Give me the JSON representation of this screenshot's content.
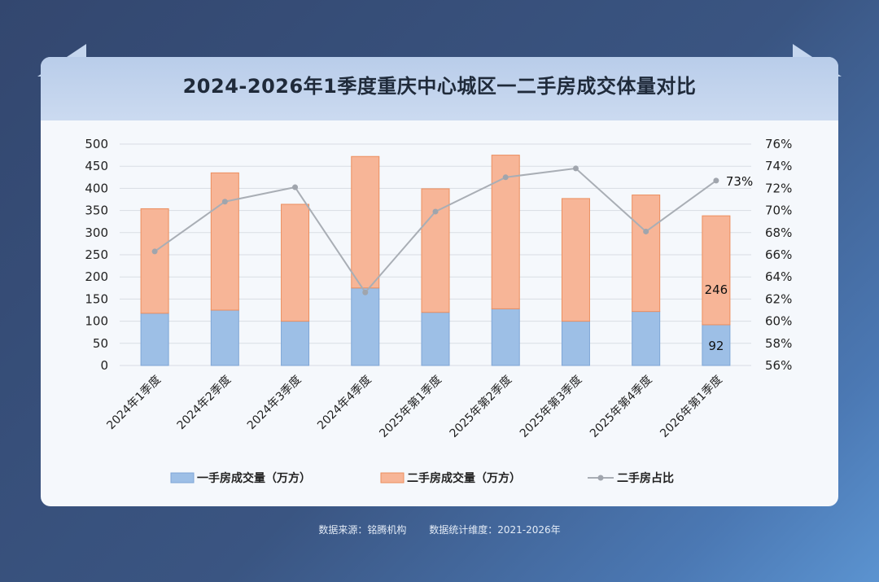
{
  "footer": {
    "source": "数据来源：铭腾机构",
    "dimension": "数据统计维度：2021-2026年"
  },
  "chart_data": {
    "type": "bar",
    "title": "2024-2026年1季度重庆中心城区一二手房成交体量对比",
    "categories": [
      "2024年1季度",
      "2024年2季度",
      "2024年3季度",
      "2024年4季度",
      "2025年第1季度",
      "2025年第2季度",
      "2025年第3季度",
      "2025年第4季度",
      "2026年第1季度"
    ],
    "series": [
      {
        "name": "一手房成交量（万方）",
        "values": [
          118,
          125,
          100,
          175,
          120,
          128,
          100,
          122,
          92
        ],
        "stack": "a",
        "axis": "left",
        "color": "#9dbfe6"
      },
      {
        "name": "二手房成交量（万方）",
        "values": [
          236,
          310,
          264,
          297,
          279,
          347,
          277,
          263,
          246
        ],
        "stack": "a",
        "axis": "left",
        "color": "#f7b597"
      },
      {
        "name": "二手房占比",
        "type": "line",
        "values": [
          66.3,
          70.8,
          72.1,
          62.6,
          69.9,
          73.0,
          73.8,
          68.1,
          72.7
        ],
        "axis": "right",
        "color": "#a9aeb5"
      }
    ],
    "ylim": [
      0,
      500
    ],
    "yticks": [
      "500",
      "450",
      "400",
      "350",
      "300",
      "250",
      "200",
      "150",
      "100",
      "50",
      "0"
    ],
    "y2lim": [
      56,
      76
    ],
    "y2ticks": [
      "76%",
      "74%",
      "72%",
      "70%",
      "68%",
      "66%",
      "64%",
      "62%",
      "60%",
      "58%",
      "56%"
    ],
    "labels": {
      "bar_first_last": "92",
      "bar_second_last": "246",
      "line_last": "73%"
    },
    "legend": {
      "position": "bottom",
      "items": [
        "一手房成交量（万方）",
        "二手房成交量（万方）",
        "二手房占比"
      ]
    }
  }
}
